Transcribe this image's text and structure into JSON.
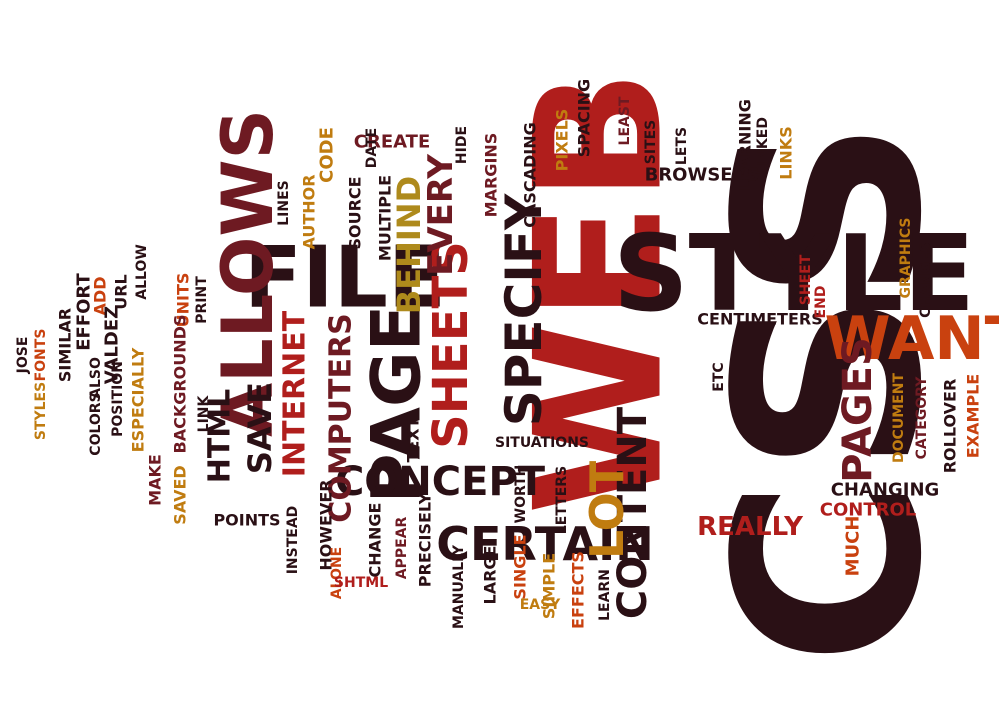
{
  "palette": {
    "dark": "#2a1015",
    "maroon": "#6e1a22",
    "red": "#b01e1c",
    "orange": "#c9410f",
    "amber": "#c07c10",
    "gold": "#ae8a1c"
  },
  "words": [
    {
      "t": "CSS"
    },
    {
      "t": "WEB"
    },
    {
      "t": "STYLE"
    },
    {
      "t": "FILE"
    },
    {
      "t": "ALLOWS"
    },
    {
      "t": "PAGE"
    },
    {
      "t": "SHEETS"
    },
    {
      "t": "SPECIFY"
    },
    {
      "t": "WANT"
    },
    {
      "t": "CONCEPT"
    },
    {
      "t": "CERTAIN"
    },
    {
      "t": "CONTENT"
    },
    {
      "t": "PAGES"
    },
    {
      "t": "LOT"
    },
    {
      "t": "COMPUTERS"
    },
    {
      "t": "INTERNET"
    },
    {
      "t": "SAVE"
    },
    {
      "t": "HTML"
    },
    {
      "t": "EVERY"
    },
    {
      "t": "BEHIND"
    },
    {
      "t": "REALLY"
    },
    {
      "t": "CHANGING"
    },
    {
      "t": "CONTROL"
    },
    {
      "t": "MUCH"
    },
    {
      "t": "CENTIMETERS"
    },
    {
      "t": "BROWSERS"
    },
    {
      "t": "SITES"
    },
    {
      "t": "LETS"
    },
    {
      "t": "LEARNING"
    },
    {
      "t": "LINKED"
    },
    {
      "t": "LINKS"
    },
    {
      "t": "LEAST"
    },
    {
      "t": "SPACING"
    },
    {
      "t": "PIXELS"
    },
    {
      "t": "CASCADING"
    },
    {
      "t": "MARGINS"
    },
    {
      "t": "HIDE"
    },
    {
      "t": "CREATE"
    },
    {
      "t": "DATE"
    },
    {
      "t": "CODE"
    },
    {
      "t": "SOURCE"
    },
    {
      "t": "MULTIPLE"
    },
    {
      "t": "AUTHOR"
    },
    {
      "t": "LINES"
    },
    {
      "t": "UNITS"
    },
    {
      "t": "PRINT"
    },
    {
      "t": "ALLOW"
    },
    {
      "t": "URL"
    },
    {
      "t": "ADD"
    },
    {
      "t": "VALDEZ"
    },
    {
      "t": "EFFORT"
    },
    {
      "t": "SIMILAR"
    },
    {
      "t": "ALSO"
    },
    {
      "t": "COLORS"
    },
    {
      "t": "POSITION"
    },
    {
      "t": "ESPECIALLY"
    },
    {
      "t": "BACKGROUNDS"
    },
    {
      "t": "FONTS"
    },
    {
      "t": "JOSE"
    },
    {
      "t": "STYLES"
    },
    {
      "t": "MAKE"
    },
    {
      "t": "SAVED"
    },
    {
      "t": "LINK"
    },
    {
      "t": "TEXT"
    },
    {
      "t": "POINTS"
    },
    {
      "t": "INSTEAD"
    },
    {
      "t": "HOWEVER"
    },
    {
      "t": "ALONE"
    },
    {
      "t": "CHANGE"
    },
    {
      "t": "SHTML"
    },
    {
      "t": "APPEAR"
    },
    {
      "t": "PRECISELY"
    },
    {
      "t": "MANUALLY"
    },
    {
      "t": "WORTH"
    },
    {
      "t": "LETTERS"
    },
    {
      "t": "LARGE"
    },
    {
      "t": "SINGLE"
    },
    {
      "t": "SIMPLE"
    },
    {
      "t": "EASY"
    },
    {
      "t": "EFFECTS"
    },
    {
      "t": "LEARN"
    },
    {
      "t": "SITUATIONS"
    },
    {
      "t": "ETC"
    },
    {
      "t": "END"
    },
    {
      "t": "SHEET"
    },
    {
      "t": "GRAPHICS"
    },
    {
      "t": "CHANGES"
    },
    {
      "t": "CATEGORY"
    },
    {
      "t": "DOCUMENT"
    },
    {
      "t": "ROLLOVER"
    },
    {
      "t": "EXAMPLE"
    }
  ]
}
